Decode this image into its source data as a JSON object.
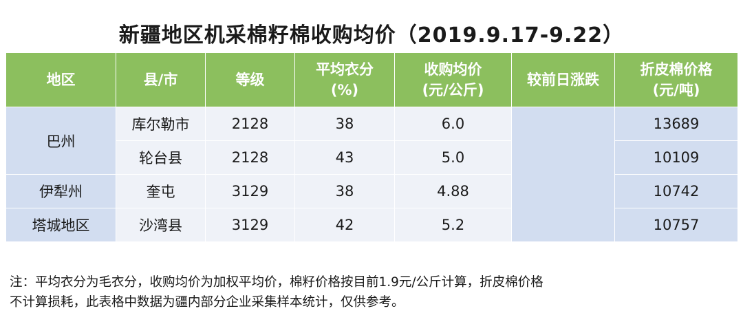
{
  "title": "新疆地区机采棉籽棉收购均价（2019.9.17-9.22）",
  "table": {
    "headers": [
      [
        "地区"
      ],
      [
        "县/市"
      ],
      [
        "等级"
      ],
      [
        "平均衣分",
        "(%)"
      ],
      [
        "收购均价",
        "(元/公斤)"
      ],
      [
        "较前日涨跌"
      ],
      [
        "折皮棉价格",
        "(元/吨)"
      ]
    ],
    "regions": [
      "巴州",
      "伊犁州",
      "塔城地区"
    ],
    "rows": [
      {
        "county": "库尔勒市",
        "grade": "2128",
        "lint_pct": "38",
        "price": "6.0",
        "change": "",
        "lint_price": "13689"
      },
      {
        "county": "轮台县",
        "grade": "2128",
        "lint_pct": "43",
        "price": "5.0",
        "change": "",
        "lint_price": "10109"
      },
      {
        "county": "奎屯",
        "grade": "3129",
        "lint_pct": "38",
        "price": "4.88",
        "change": "",
        "lint_price": "10742"
      },
      {
        "county": "沙湾县",
        "grade": "3129",
        "lint_pct": "42",
        "price": "5.2",
        "change": "",
        "lint_price": "10757"
      }
    ]
  },
  "note": {
    "line1": "注：平均衣分为毛衣分，收购均价为加权平均价，棉籽价格按目前1.9元/公斤计算，折皮棉价格",
    "line2": "不计算损耗，此表格中数据为疆内部分企业采集样本统计，仅供参考。"
  }
}
